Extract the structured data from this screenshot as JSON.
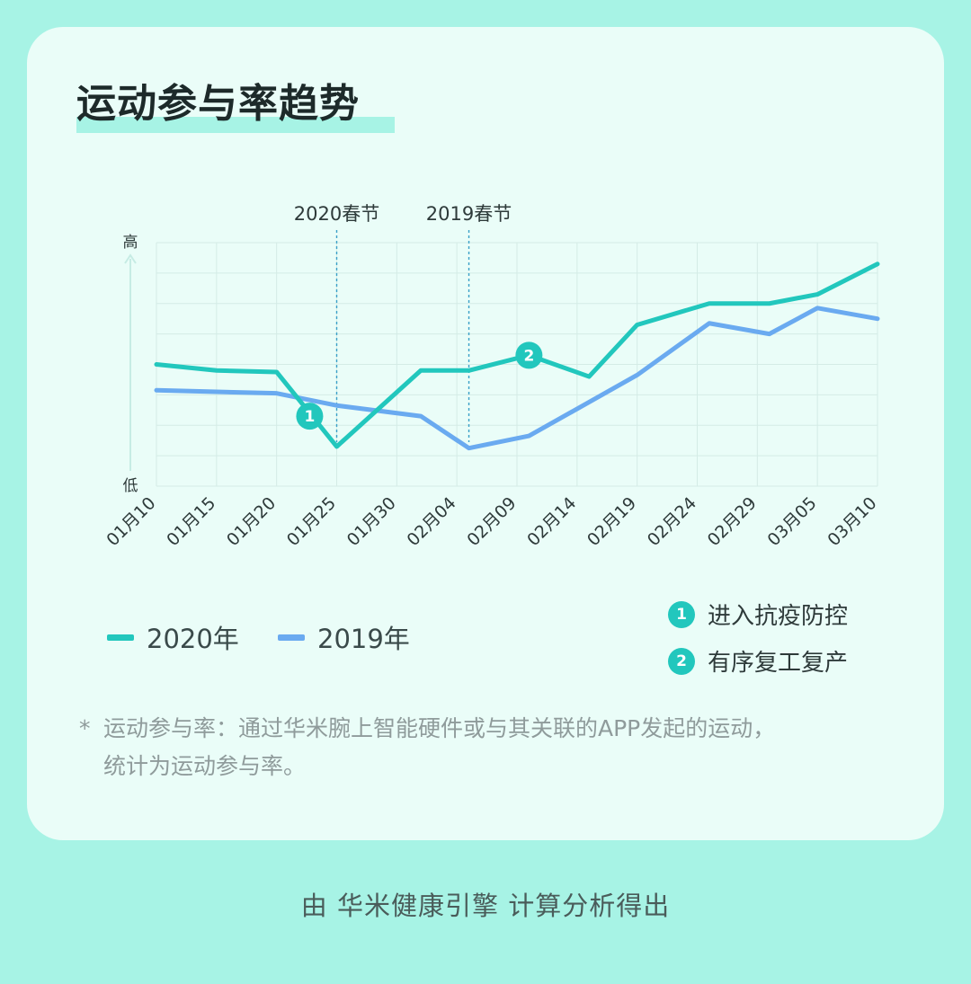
{
  "title": "运动参与率趋势",
  "chart_data": {
    "type": "line",
    "ylabel_top": "高",
    "ylabel_bottom": "低",
    "categories": [
      "01月10",
      "01月15",
      "01月20",
      "01月25",
      "01月30",
      "02月04",
      "02月09",
      "02月14",
      "02月19",
      "02月24",
      "02月29",
      "03月05",
      "03月10"
    ],
    "ylim": [
      0,
      8
    ],
    "grid": true,
    "series": [
      {
        "name": "2020年",
        "color": "#22c7bd",
        "x": [
          0,
          1,
          2,
          3,
          4.4,
          5.2,
          6.2,
          7.2,
          8,
          9.2,
          10.2,
          11,
          12
        ],
        "values": [
          4.0,
          3.8,
          3.75,
          1.3,
          3.8,
          3.8,
          4.3,
          3.6,
          5.3,
          6.0,
          6.0,
          6.3,
          7.3
        ]
      },
      {
        "name": "2019年",
        "color": "#6aaaf0",
        "x": [
          0,
          1,
          2,
          3,
          4.4,
          5.2,
          6.2,
          8,
          9.2,
          10.2,
          11,
          12
        ],
        "values": [
          3.15,
          3.1,
          3.05,
          2.65,
          2.3,
          1.25,
          1.65,
          3.65,
          5.35,
          5.0,
          5.85,
          5.5
        ]
      }
    ],
    "markers": [
      {
        "label": "2020春节",
        "x": 3
      },
      {
        "label": "2019春节",
        "x": 5.2
      }
    ],
    "annotations": [
      {
        "id": "1",
        "x": 2.55,
        "y": 2.3
      },
      {
        "id": "2",
        "x": 6.2,
        "y": 4.3
      }
    ]
  },
  "legend": [
    {
      "label": "2020年",
      "color": "#22c7bd"
    },
    {
      "label": "2019年",
      "color": "#6aaaf0"
    }
  ],
  "annotations_legend": [
    {
      "badge": "1",
      "label": "进入抗疫防控"
    },
    {
      "badge": "2",
      "label": "有序复工复产"
    }
  ],
  "footnote": {
    "star": "*",
    "line1": "运动参与率：通过华米腕上智能硬件或与其关联的APP发起的运动，",
    "line2": "统计为运动参与率。"
  },
  "source": "由 华米健康引擎 计算分析得出"
}
